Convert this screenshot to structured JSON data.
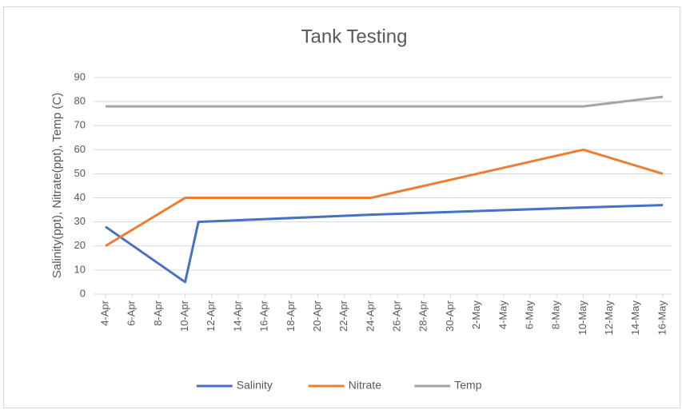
{
  "chart_data": {
    "type": "line",
    "title": "Tank Testing",
    "y_label": "Salinity(ppt), Nitrate(ppt), Temp (C)",
    "x": [
      "4-Apr",
      "10-Apr",
      "11-Apr",
      "24-Apr",
      "10-May",
      "16-May"
    ],
    "series": [
      {
        "name": "Salinity",
        "color": "#4472c4",
        "values": [
          28,
          5,
          30,
          33,
          36,
          37
        ]
      },
      {
        "name": "Nitrate",
        "color": "#ed7d31",
        "values": [
          20,
          40,
          40,
          40,
          60,
          50
        ]
      },
      {
        "name": "Temp",
        "color": "#a5a5a5",
        "values": [
          78,
          78,
          78,
          78,
          78,
          82
        ]
      }
    ],
    "xlim": [
      "4-Apr",
      "16-May"
    ],
    "xticks": [
      "4-Apr",
      "6-Apr",
      "8-Apr",
      "10-Apr",
      "12-Apr",
      "14-Apr",
      "16-Apr",
      "18-Apr",
      "20-Apr",
      "22-Apr",
      "24-Apr",
      "26-Apr",
      "28-Apr",
      "30-Apr",
      "2-May",
      "4-May",
      "6-May",
      "8-May",
      "10-May",
      "12-May",
      "14-May",
      "16-May"
    ],
    "ylim": [
      0,
      90
    ],
    "yticks": [
      0,
      10,
      20,
      30,
      40,
      50,
      60,
      70,
      80,
      90
    ],
    "grid": true,
    "legend": "bottom"
  }
}
